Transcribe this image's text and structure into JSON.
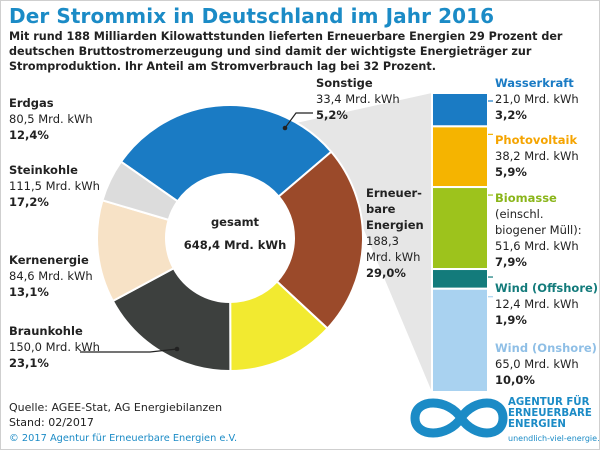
{
  "title": "Der Strommix in Deutschland im Jahr 2016",
  "intro": "Mit rund 188 Milliarden Kilowattstunden lieferten Erneuerbare Energien 29 Prozent der deutschen Bruttostromerzeugung und sind  damit der wichtigste Energieträger zur Stromproduktion. Ihr Anteil am Stromverbrauch lag bei 32 Prozent.",
  "center": {
    "label": "gesamt",
    "value": "648,4 Mrd. kWh"
  },
  "footer": {
    "source": "Quelle: AGEE-Stat, AG Energiebilanzen",
    "date": "Stand: 02/2017",
    "copyright": "© 2017 Agentur für Erneuerbare Energien e.V."
  },
  "logo": {
    "line1": "AGENTUR FÜR",
    "line2": "ERNEUERBARE",
    "line3": "ENERGIEN",
    "url": "unendlich-viel-energie.de"
  },
  "chart_data": [
    {
      "type": "pie",
      "center_label": "gesamt",
      "center_value": "648,4 Mrd. kWh",
      "slices": [
        {
          "name": "Erneuer-bare Energien",
          "name_lines": [
            "Erneuer-",
            "bare",
            "Energien"
          ],
          "value_text": "188,3 Mrd. kWh",
          "value_lines": [
            "188,3",
            "Mrd. kWh"
          ],
          "value": 188.3,
          "percent": 29.0,
          "percent_text": "29,0%",
          "color": "#1a7bc4"
        },
        {
          "name": "Braunkohle",
          "name_lines": [
            "Braunkohle"
          ],
          "value_text": "150,0 Mrd. kWh",
          "value_lines": [
            "150,0 Mrd. kWh"
          ],
          "value": 150.0,
          "percent": 23.1,
          "percent_text": "23,1%",
          "color": "#9b4a2a"
        },
        {
          "name": "Kernenergie",
          "name_lines": [
            "Kernenergie"
          ],
          "value_text": "84,6 Mrd. kWh",
          "value_lines": [
            "84,6 Mrd. kWh"
          ],
          "value": 84.6,
          "percent": 13.1,
          "percent_text": "13,1%",
          "color": "#f2ea30"
        },
        {
          "name": "Steinkohle",
          "name_lines": [
            "Steinkohle"
          ],
          "value_text": "111,5 Mrd. kWh",
          "value_lines": [
            "111,5 Mrd. kWh"
          ],
          "value": 111.5,
          "percent": 17.2,
          "percent_text": "17,2%",
          "color": "#3d403e"
        },
        {
          "name": "Erdgas",
          "name_lines": [
            "Erdgas"
          ],
          "value_text": "80,5 Mrd. kWh",
          "value_lines": [
            "80,5 Mrd. kWh"
          ],
          "value": 80.5,
          "percent": 12.4,
          "percent_text": "12,4%",
          "color": "#f7e2c6"
        },
        {
          "name": "Sonstige",
          "name_lines": [
            "Sonstige"
          ],
          "value_text": "33,4 Mrd. kWh",
          "value_lines": [
            "33,4 Mrd. kWh"
          ],
          "value": 33.4,
          "percent": 5.2,
          "percent_text": "5,2%",
          "color": "#dcdcdc"
        }
      ]
    },
    {
      "type": "bar",
      "stacked": true,
      "categories": [
        "Wasserkraft",
        "Photovoltaik",
        "Biomasse",
        "Wind (Offshore)",
        "Wind (Onshore)"
      ],
      "items": [
        {
          "name": "Wasserkraft",
          "value_text": "21,0 Mrd. kWh",
          "value": 21.0,
          "percent": 3.2,
          "percent_text": "3,2%",
          "color": "#1a7bc4",
          "label_color": "#1a7bc4",
          "lines": [
            "21,0 Mrd. kWh"
          ]
        },
        {
          "name": "Photovoltaik",
          "value_text": "38,2 Mrd. kWh",
          "value": 38.2,
          "percent": 5.9,
          "percent_text": "5,9%",
          "color": "#f5b400",
          "label_color": "#f5a400",
          "lines": [
            "38,2 Mrd. kWh"
          ]
        },
        {
          "name": "Biomasse",
          "value_text": "(einschl. biogener Müll): 51,6 Mrd. kWh",
          "value": 51.6,
          "percent": 7.9,
          "percent_text": "7,9%",
          "color": "#9dc31c",
          "label_color": "#8ab51a",
          "lines": [
            "(einschl.",
            "biogener Müll):",
            "51,6 Mrd. kWh"
          ]
        },
        {
          "name": "Wind (Offshore)",
          "value_text": "12,4 Mrd. kWh",
          "value": 12.4,
          "percent": 1.9,
          "percent_text": "1,9%",
          "color": "#137b7b",
          "label_color": "#137b7b",
          "lines": [
            "12,4 Mrd. kWh"
          ]
        },
        {
          "name": "Wind (Onshore)",
          "value_text": "65,0 Mrd. kWh",
          "value": 65.0,
          "percent": 10.0,
          "percent_text": "10,0%",
          "color": "#a9d2f0",
          "label_color": "#8fbfe6",
          "lines": [
            "65,0 Mrd. kWh"
          ]
        }
      ]
    }
  ]
}
